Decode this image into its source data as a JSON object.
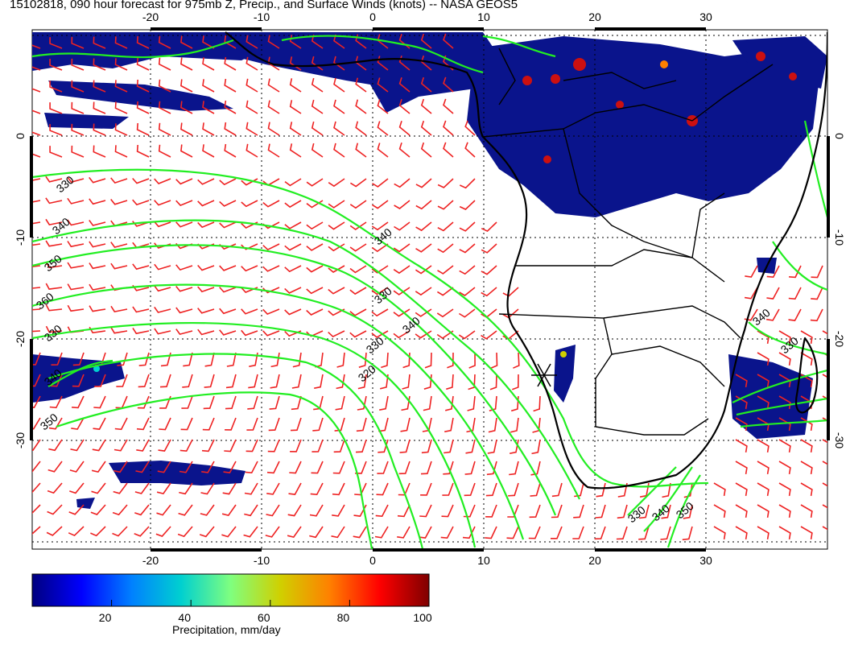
{
  "title": "15102818, 090 hour forecast for 975mb Z, Precip., and Surface Winds (knots) -- NASA GEOS5",
  "longitude_ticks": [
    "-20",
    "-10",
    "0",
    "10",
    "20",
    "30"
  ],
  "latitude_ticks": [
    "0",
    "-10",
    "-20",
    "-30"
  ],
  "contour_labels": [
    "330",
    "340",
    "350",
    "360",
    "330",
    "340",
    "350",
    "340",
    "330",
    "340",
    "330",
    "320",
    "330",
    "340",
    "350",
    "340",
    "330"
  ],
  "colorbar": {
    "label": "Precipitation, mm/day",
    "ticks": [
      "20",
      "40",
      "60",
      "80",
      "100"
    ],
    "colors": [
      "#00007f",
      "#0000ff",
      "#0080ff",
      "#00d0d0",
      "#7fff7f",
      "#d0d000",
      "#ff8000",
      "#ff0000",
      "#7f0000"
    ]
  },
  "colors": {
    "contours": "#22ee22",
    "wind_barbs": "#ee2222",
    "coastline": "#000000",
    "precip_light": "#0a148c",
    "precip_heavy": "#cc1010"
  }
}
